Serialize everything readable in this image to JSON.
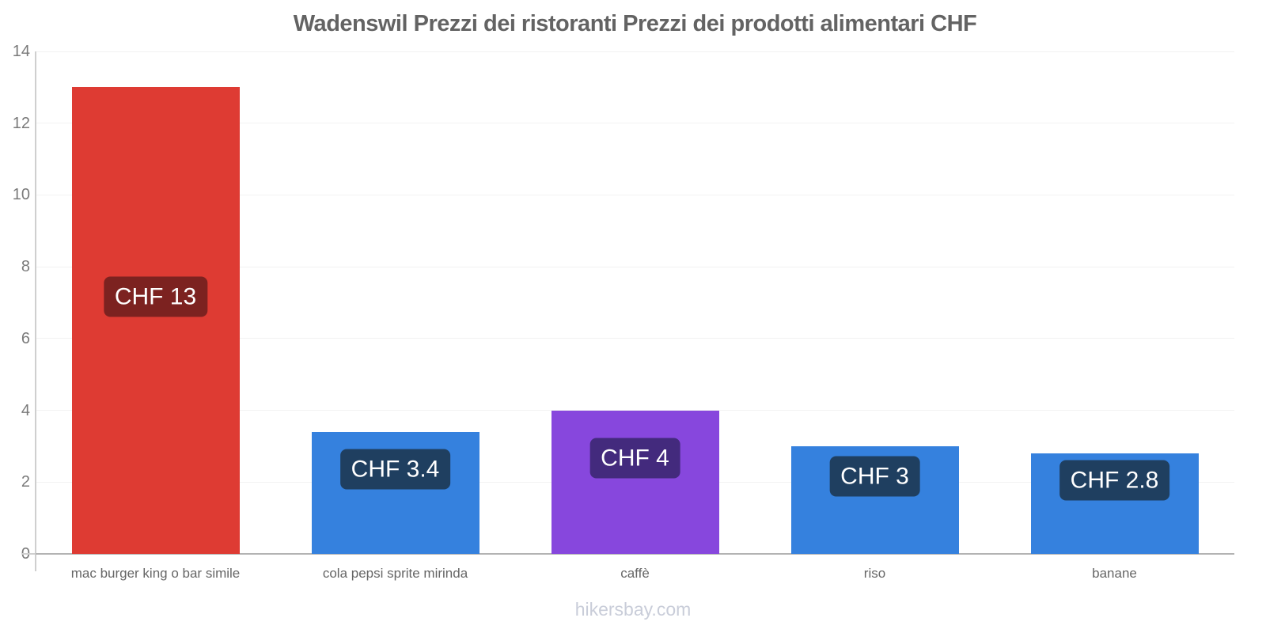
{
  "title": "Wadenswil Prezzi dei ristoranti Prezzi dei prodotti alimentari CHF",
  "footer": "hikersbay.com",
  "colors": {
    "background": "#ffffff",
    "title_text": "#636363",
    "tick_text": "#7a7a7a",
    "category_text": "#666666",
    "footer_text": "#c9cdd9",
    "x_axis_line": "#b3b3b3",
    "y_axis_line": "#cfcfcf",
    "gridline": "#f2f2f2"
  },
  "chart_data": {
    "type": "bar",
    "title": "Wadenswil Prezzi dei ristoranti Prezzi dei prodotti alimentari CHF",
    "currency": "CHF",
    "categories": [
      "mac burger king o bar simile",
      "cola pepsi sprite mirinda",
      "caffè",
      "riso",
      "banane"
    ],
    "values": [
      13,
      3.4,
      4,
      3,
      2.8
    ],
    "bar_labels": [
      "CHF 13",
      "CHF 3.4",
      "CHF 4",
      "CHF 3",
      "CHF 2.8"
    ],
    "bar_colors": [
      "#de3b33",
      "#3581de",
      "#8747dd",
      "#3581de",
      "#3581de"
    ],
    "label_bg_colors": [
      "#7c2220",
      "#1f3f60",
      "#432a7d",
      "#1f3f60",
      "#1f3f60"
    ],
    "xlabel": "",
    "ylabel": "",
    "ylim": [
      0,
      14
    ],
    "yticks": [
      0,
      2,
      4,
      6,
      8,
      10,
      12,
      14
    ],
    "grid": "faint horizontal gridlines at y ticks",
    "legend": "none",
    "watermark": "hikersbay.com"
  }
}
